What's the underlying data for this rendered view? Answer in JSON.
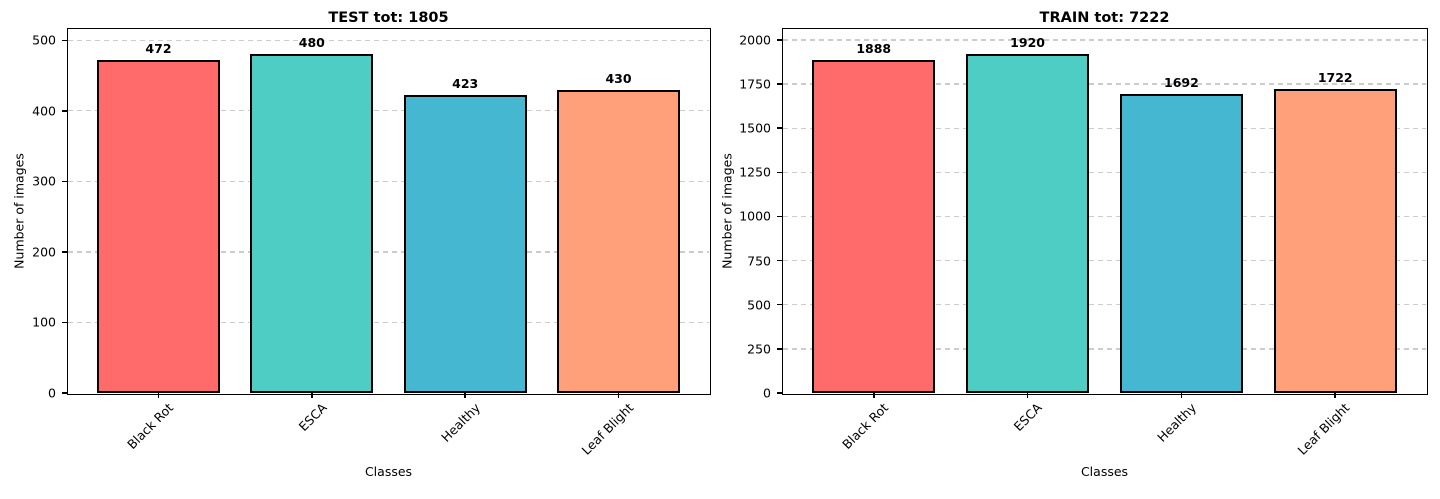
{
  "figure": {
    "background": "#ffffff",
    "grid_color": "#cccccc",
    "axis_color": "#000000",
    "bar_edge_color": "#000000",
    "grid_style": "horizontal dashed"
  },
  "chart_data": [
    {
      "type": "bar",
      "title": "TEST tot: 1805",
      "total": 1805,
      "xlabel": "Classes",
      "ylabel": "Number of images",
      "categories": [
        "Black Rot",
        "ESCA",
        "Healthy",
        "Leaf Blight"
      ],
      "values": [
        472,
        480,
        423,
        430
      ],
      "bar_colors": [
        "#ff6b6b",
        "#4ecdc4",
        "#45b7d1",
        "#ffa07a"
      ],
      "yticks": [
        0,
        100,
        200,
        300,
        400,
        500
      ],
      "ylim": [
        0,
        516
      ],
      "xlim_units": [
        -0.59,
        3.59
      ],
      "bar_width_units": 0.8,
      "grid": "horizontal dashed",
      "legend_position": "none",
      "x_tick_rotation_deg": 45
    },
    {
      "type": "bar",
      "title": "TRAIN tot: 7222",
      "total": 7222,
      "xlabel": "Classes",
      "ylabel": "Number of images",
      "categories": [
        "Black Rot",
        "ESCA",
        "Healthy",
        "Leaf Blight"
      ],
      "values": [
        1888,
        1920,
        1692,
        1722
      ],
      "bar_colors": [
        "#ff6b6b",
        "#4ecdc4",
        "#45b7d1",
        "#ffa07a"
      ],
      "yticks": [
        0,
        250,
        500,
        750,
        1000,
        1250,
        1500,
        1750,
        2000
      ],
      "ylim": [
        0,
        2062
      ],
      "xlim_units": [
        -0.59,
        3.59
      ],
      "bar_width_units": 0.8,
      "grid": "horizontal dashed",
      "legend_position": "none",
      "x_tick_rotation_deg": 45
    }
  ]
}
